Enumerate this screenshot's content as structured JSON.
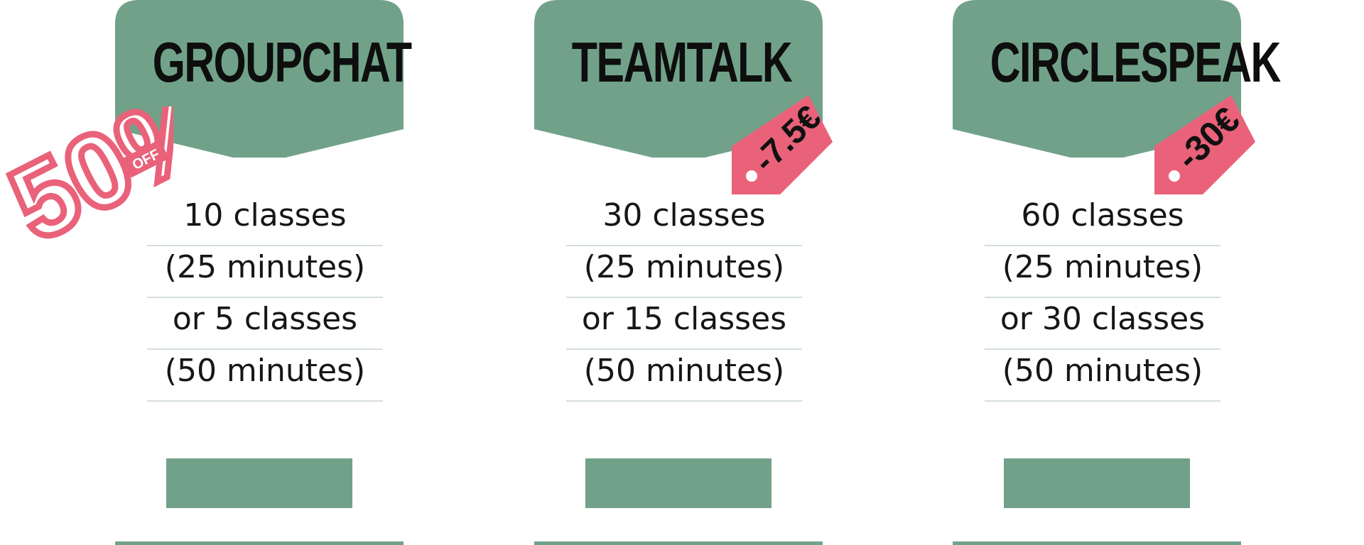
{
  "colors": {
    "accent": "#71a289",
    "discount": "#e9627a",
    "text": "#161616"
  },
  "plans": [
    {
      "name": "GROUPCHAT",
      "features": [
        "10 classes",
        "(25 minutes)",
        "or 5 classes",
        "(50 minutes)"
      ],
      "badge": {
        "value": "50%",
        "suffix": "OFF"
      }
    },
    {
      "name": "TEAMTALK",
      "features": [
        "30 classes",
        "(25 minutes)",
        "or 15 classes",
        "(50 minutes)"
      ],
      "discount_tag": "-7.5€"
    },
    {
      "name": "CIRCLESPEAK",
      "features": [
        "60 classes",
        "(25 minutes)",
        "or 30 classes",
        "(50 minutes)"
      ],
      "discount_tag": "-30€"
    }
  ]
}
